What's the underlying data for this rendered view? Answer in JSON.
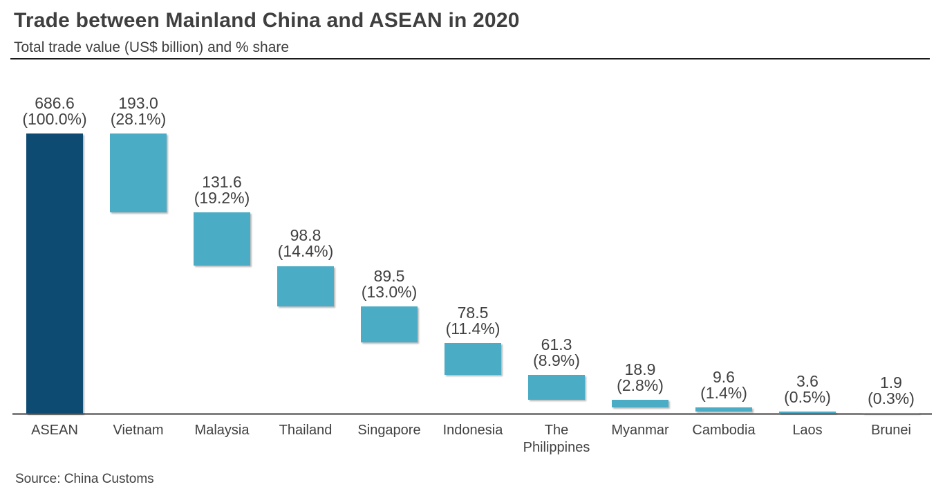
{
  "header": {
    "title": "Trade between Mainland China and ASEAN in 2020",
    "subtitle": "Total trade value (US$ billion) and % share"
  },
  "footer": {
    "source": "Source: China Customs"
  },
  "colors": {
    "total_bar": "#0e4b72",
    "member_bar": "#4bacc6",
    "axis_line": "#808080",
    "header_rule": "#1a1a1a",
    "text": "#404040"
  },
  "chart_data": {
    "type": "bar",
    "subtype": "waterfall-descending",
    "title": "Trade between Mainland China and ASEAN in 2020",
    "subtitle": "Total trade value (US$ billion) and % share",
    "unit": "US$ billion",
    "categories": [
      "ASEAN",
      "Vietnam",
      "Malaysia",
      "Thailand",
      "Singapore",
      "Indonesia",
      "The Philippines",
      "Myanmar",
      "Cambodia",
      "Laos",
      "Brunei"
    ],
    "values": [
      686.6,
      193.0,
      131.6,
      98.8,
      89.5,
      78.5,
      61.3,
      18.9,
      9.6,
      3.6,
      1.9
    ],
    "shares_pct": [
      100.0,
      28.1,
      19.2,
      14.4,
      13.0,
      11.4,
      8.9,
      2.8,
      1.4,
      0.5,
      0.3
    ],
    "total_category": "ASEAN",
    "ylim": [
      0,
      686.6
    ],
    "grid": false,
    "legend": false,
    "data_label_format": "value (share%)",
    "source": "Source: China Customs"
  }
}
